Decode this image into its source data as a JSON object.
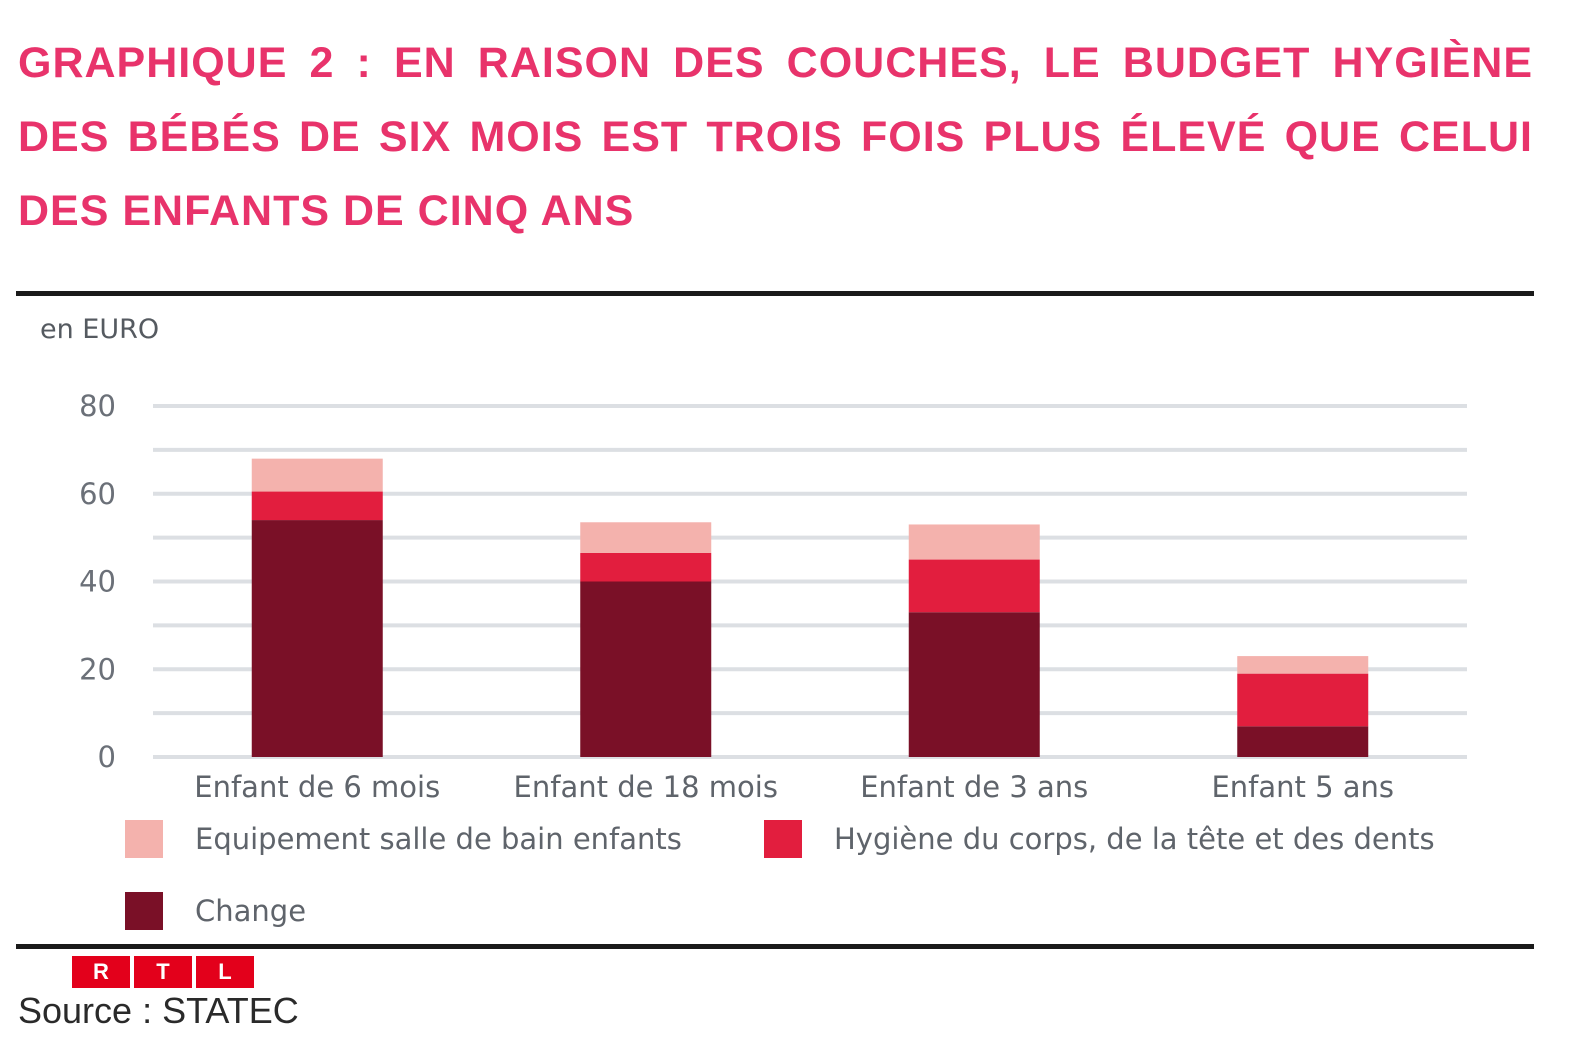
{
  "colors": {
    "title": "#e8336b",
    "equipement": "#f4b2ad",
    "hygiene": "#e21e3e",
    "change": "#7a1027",
    "grid": "#dcdfe3",
    "logo": "#e3001b"
  },
  "logo": {
    "letters": [
      "R",
      "T",
      "L"
    ]
  },
  "source": "Source : STATEC",
  "chart_data": {
    "type": "bar",
    "stacked": true,
    "title": "GRAPHIQUE 2 : EN RAISON DES COUCHES, LE BUDGET HYGIÈNE DES BÉBÉS DE SIX MOIS EST TROIS FOIS PLUS ÉLEVÉ QUE CELUI DES ENFANTS DE CINQ ANS",
    "ylabel": "en EURO",
    "xlabel": "",
    "ylim": [
      0,
      80
    ],
    "yticks": [
      0,
      20,
      40,
      60,
      80
    ],
    "grid": true,
    "legend_position": "bottom",
    "categories": [
      "Enfant de 6 mois",
      "Enfant de 18 mois",
      "Enfant de 3 ans",
      "Enfant 5 ans"
    ],
    "series": [
      {
        "name": "Change",
        "color_key": "change",
        "values": [
          54,
          40,
          33,
          7
        ]
      },
      {
        "name": "Hygiène du corps, de la tête et des dents",
        "color_key": "hygiene",
        "values": [
          6.5,
          6.5,
          12,
          12
        ]
      },
      {
        "name": "Equipement salle de bain enfants",
        "color_key": "equipement",
        "values": [
          7.5,
          7,
          8,
          4
        ]
      }
    ]
  }
}
